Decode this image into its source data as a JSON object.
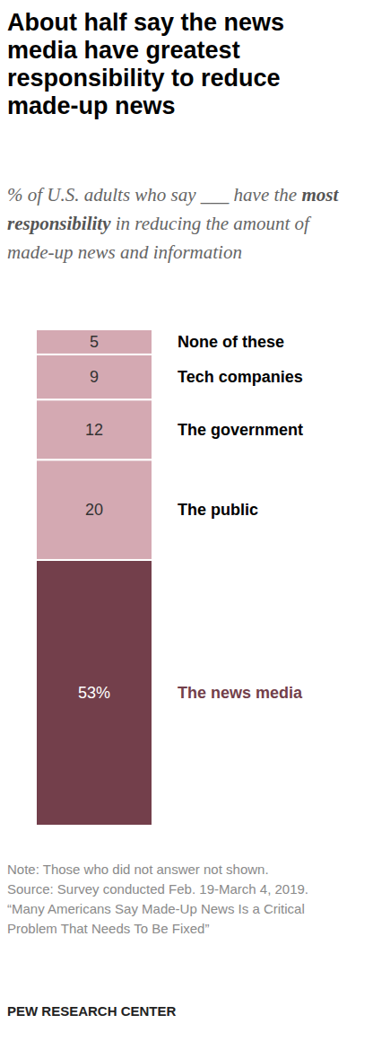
{
  "chart_data": {
    "type": "bar",
    "stacked": true,
    "data_labels": true,
    "tick_labels": false,
    "title": "About half say the news media have greatest responsibility to reduce made-up news",
    "subtitle": [
      "% of U.S. adults who say ___ have the ",
      "most responsibility",
      " in reducing the amount of made-up news and information"
    ],
    "categories": [
      null
    ],
    "ylim": [
      0,
      99
    ],
    "series": [
      {
        "name": "The news media",
        "color": "#733f4b",
        "values": [
          53
        ],
        "value_labels": [
          "53%"
        ]
      },
      {
        "name": "The public",
        "color": "#d4a9b2",
        "values": [
          20
        ]
      },
      {
        "name": "The government",
        "color": "#d4a9b2",
        "values": [
          12
        ]
      },
      {
        "name": "Tech companies",
        "color": "#d4a9b2",
        "values": [
          9
        ]
      },
      {
        "name": "None of these",
        "color": "#d4a9b2",
        "values": [
          5
        ]
      }
    ],
    "annotations": [
      "Note: Those who did not answer not shown.",
      "Source: Survey conducted Feb. 19-March 4, 2019.",
      "“Many Americans Say Made-Up News Is a Critical Problem That Needs To Be Fixed”"
    ],
    "credit": "PEW RESEARCH CENTER"
  }
}
